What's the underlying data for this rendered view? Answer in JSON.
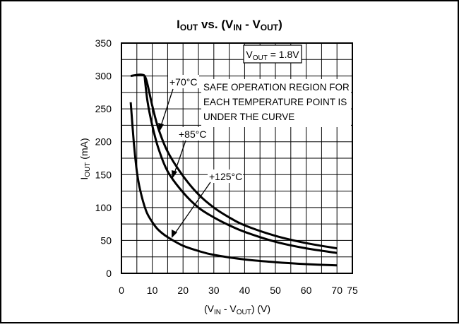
{
  "chart_data": {
    "type": "line",
    "title": {
      "main": "I",
      "main_sub": "OUT",
      "mid": " vs. (V",
      "mid_sub": "IN",
      "dash": " - V",
      "dash_sub": "OUT",
      "close": ")"
    },
    "xlabel": {
      "a": "(V",
      "a_sub": "IN",
      "b": " - V",
      "b_sub": "OUT",
      "c": ") (V)"
    },
    "ylabel": {
      "a": "I",
      "a_sub": "OUT",
      "b": " (mA)"
    },
    "xlim": [
      0,
      75
    ],
    "ylim": [
      0,
      350
    ],
    "xticks": [
      "0",
      "10",
      "20",
      "30",
      "40",
      "50",
      "60",
      "70",
      "75"
    ],
    "yticks": [
      "0",
      "50",
      "100",
      "150",
      "200",
      "250",
      "300",
      "350"
    ],
    "grid": true,
    "annotations": {
      "condition": {
        "a": "V",
        "a_sub": "OUT",
        "b": " = 1.8V"
      },
      "note": [
        "SAFE OPERATION REGION FOR",
        "EACH TEMPERATURE POINT IS",
        "UNDER THE CURVE"
      ]
    },
    "series": [
      {
        "name": "+70°C",
        "points": [
          [
            3,
            300
          ],
          [
            6.5,
            302
          ],
          [
            8,
            295
          ],
          [
            10,
            255
          ],
          [
            12,
            220
          ],
          [
            15,
            185
          ],
          [
            20,
            148
          ],
          [
            25,
            120
          ],
          [
            30,
            100
          ],
          [
            35,
            85
          ],
          [
            40,
            73
          ],
          [
            50,
            57
          ],
          [
            60,
            46
          ],
          [
            70,
            38
          ]
        ]
      },
      {
        "name": "+85°C",
        "points": [
          [
            7.5,
            300
          ],
          [
            8.5,
            260
          ],
          [
            10,
            225
          ],
          [
            12,
            190
          ],
          [
            15,
            155
          ],
          [
            20,
            123
          ],
          [
            25,
            100
          ],
          [
            30,
            85
          ],
          [
            35,
            73
          ],
          [
            40,
            63
          ],
          [
            50,
            48
          ],
          [
            60,
            38
          ],
          [
            70,
            31
          ]
        ]
      },
      {
        "name": "+125°C",
        "points": [
          [
            3,
            260
          ],
          [
            4,
            200
          ],
          [
            5,
            155
          ],
          [
            6,
            128
          ],
          [
            8,
            95
          ],
          [
            10,
            78
          ],
          [
            12,
            66
          ],
          [
            15,
            55
          ],
          [
            20,
            42
          ],
          [
            25,
            34
          ],
          [
            30,
            28
          ],
          [
            40,
            21
          ],
          [
            50,
            17
          ],
          [
            60,
            14
          ],
          [
            70,
            12
          ]
        ]
      }
    ],
    "label_text": [
      "+70°C",
      "+85°C",
      "+125°C"
    ]
  }
}
